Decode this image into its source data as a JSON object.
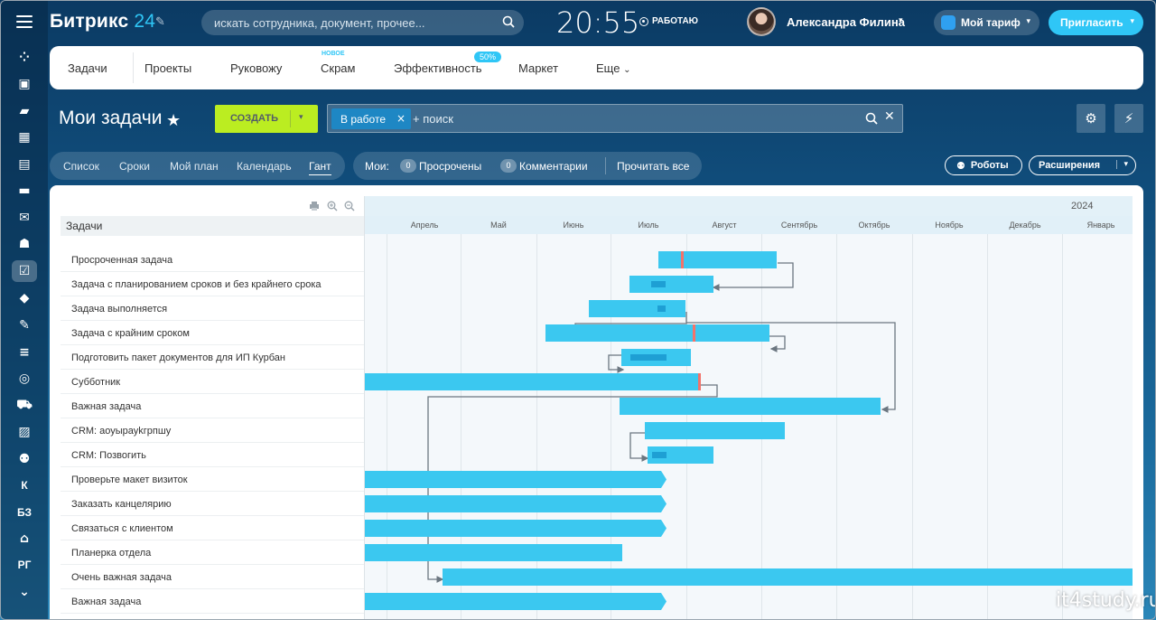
{
  "brand": {
    "name": "Битрикс",
    "number": "24"
  },
  "search": {
    "placeholder": "искать сотрудника, документ, прочее..."
  },
  "clock": {
    "time": "20:55",
    "status": "РАБОТАЮ"
  },
  "user": {
    "name": "Александра Филина"
  },
  "buttons": {
    "tariff": "Мой тариф",
    "invite": "Пригласить",
    "create": "СОЗДАТЬ",
    "robots": "Роботы",
    "extensions": "Расширения"
  },
  "nav": {
    "items": [
      "Задачи",
      "Проекты",
      "Руковожу",
      "Скрам",
      "Эффективность",
      "Маркет",
      "Еще"
    ],
    "new_badge": "НОВОЕ",
    "percent_badge": "50%"
  },
  "page": {
    "title": "Мои задачи"
  },
  "filter": {
    "tag": "В работе",
    "placeholder": "+ поиск"
  },
  "views": [
    "Список",
    "Сроки",
    "Мой план",
    "Календарь",
    "Гант"
  ],
  "counters": {
    "label": "Мои:",
    "overdue_count": "0",
    "overdue_label": "Просрочены",
    "comments_count": "0",
    "comments_label": "Комментарии",
    "read_all": "Прочитать все"
  },
  "gantt": {
    "column_title": "Задачи",
    "year": "2024",
    "months": [
      "Апрель",
      "Май",
      "Июнь",
      "Июль",
      "Август",
      "Сентябрь",
      "Октябрь",
      "Ноябрь",
      "Декабрь",
      "Январь"
    ],
    "tasks": [
      "Просроченная задача",
      "Задача с планированием сроков и без крайнего срока",
      "Задача выполняется",
      "Задача с крайним сроком",
      "Подготовить пакет документов для ИП Курбан",
      "Субботник",
      "Важная задача",
      "CRM: аоуырауkгрпшу",
      "CRM: Позвогить",
      "Проверьте макет визиток",
      "Заказать канцелярию",
      "Связаться с клиентом",
      "Планерка отдела",
      "Очень важная задача",
      "Важная задача"
    ]
  },
  "watermark": "it4study.ru"
}
